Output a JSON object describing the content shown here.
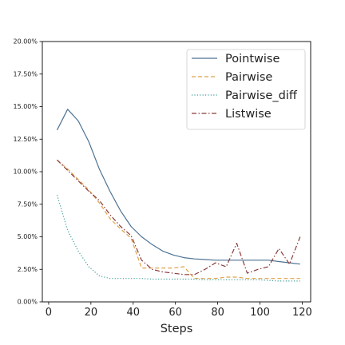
{
  "chart_data": {
    "type": "line",
    "title": "",
    "xlabel": "Steps",
    "ylabel": "",
    "xlim": [
      -3,
      124
    ],
    "ylim": [
      0,
      0.2
    ],
    "xticks": [
      0,
      20,
      40,
      60,
      80,
      100,
      120
    ],
    "xtick_labels": [
      "0",
      "20",
      "40",
      "60",
      "80",
      "100",
      "120"
    ],
    "yticks": [
      0,
      0.025,
      0.05,
      0.075,
      0.1,
      0.125,
      0.15,
      0.175,
      0.2
    ],
    "ytick_labels": [
      "0.00%",
      "2.50%",
      "5.00%",
      "7.50%",
      "10.00%",
      "12.50%",
      "15.00%",
      "17.50%",
      "20.00%"
    ],
    "grid": false,
    "legend_position": "top-right",
    "series": [
      {
        "name": "Pointwise",
        "color": "#4c7293",
        "dash": "solid",
        "x": [
          4,
          9,
          14,
          19,
          24,
          29,
          34,
          39,
          44,
          49,
          54,
          59,
          64,
          69,
          74,
          79,
          84,
          89,
          94,
          99,
          104,
          109,
          114,
          119
        ],
        "y": [
          0.132,
          0.148,
          0.139,
          0.123,
          0.102,
          0.085,
          0.07,
          0.058,
          0.05,
          0.044,
          0.039,
          0.036,
          0.034,
          0.033,
          0.0325,
          0.032,
          0.032,
          0.032,
          0.032,
          0.032,
          0.032,
          0.031,
          0.03,
          0.029
        ]
      },
      {
        "name": "Pairwise",
        "color": "#dfa14b",
        "dash": "dashed",
        "x": [
          4,
          9,
          14,
          19,
          24,
          29,
          34,
          39,
          44,
          49,
          54,
          59,
          64,
          69,
          74,
          79,
          84,
          89,
          94,
          99,
          104,
          109,
          114,
          119
        ],
        "y": [
          0.109,
          0.102,
          0.094,
          0.086,
          0.076,
          0.064,
          0.056,
          0.049,
          0.026,
          0.026,
          0.026,
          0.026,
          0.027,
          0.018,
          0.018,
          0.018,
          0.019,
          0.019,
          0.018,
          0.018,
          0.018,
          0.018,
          0.018,
          0.018
        ]
      },
      {
        "name": "Pairwise_diff",
        "color": "#3f9e99",
        "dash": "dotted",
        "x": [
          4,
          9,
          14,
          19,
          24,
          29,
          34,
          39,
          44,
          49,
          54,
          59,
          64,
          69,
          74,
          79,
          84,
          89,
          94,
          99,
          104,
          109,
          114,
          119
        ],
        "y": [
          0.082,
          0.055,
          0.039,
          0.027,
          0.02,
          0.018,
          0.018,
          0.018,
          0.018,
          0.0175,
          0.0175,
          0.0175,
          0.0175,
          0.0175,
          0.017,
          0.017,
          0.017,
          0.017,
          0.017,
          0.017,
          0.0165,
          0.016,
          0.016,
          0.016
        ]
      },
      {
        "name": "Listwise",
        "color": "#8b3a3a",
        "dash": "dashdot",
        "x": [
          4,
          9,
          14,
          19,
          24,
          29,
          34,
          39,
          44,
          49,
          54,
          59,
          64,
          69,
          74,
          79,
          84,
          89,
          94,
          99,
          104,
          109,
          114,
          119
        ],
        "y": [
          0.109,
          0.101,
          0.093,
          0.085,
          0.078,
          0.067,
          0.058,
          0.051,
          0.032,
          0.025,
          0.023,
          0.022,
          0.021,
          0.021,
          0.025,
          0.03,
          0.027,
          0.045,
          0.022,
          0.025,
          0.027,
          0.041,
          0.029,
          0.05
        ]
      }
    ]
  }
}
